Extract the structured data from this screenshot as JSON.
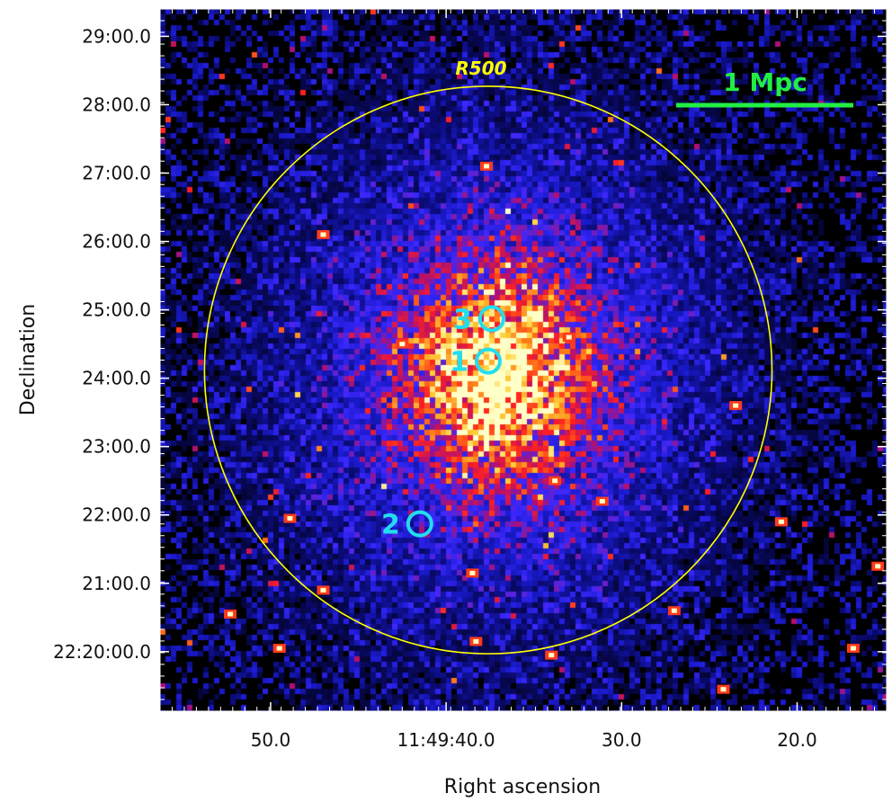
{
  "chart_data": {
    "type": "heatmap",
    "title": "",
    "xlabel": "Right ascension",
    "ylabel": "Declination",
    "colormap": [
      "#000000",
      "#0a0a70",
      "#1a1acc",
      "#3c28ff",
      "#b01070",
      "#ff2020",
      "#ff7a18",
      "#ffd23c",
      "#ffffc8"
    ],
    "x_ticks": [
      {
        "label": "50.0",
        "ra_sec": 50.0
      },
      {
        "label": "11:49:40.0",
        "ra_sec": 40.0
      },
      {
        "label": "30.0",
        "ra_sec": 30.0
      },
      {
        "label": "20.0",
        "ra_sec": 20.0
      }
    ],
    "y_ticks": [
      {
        "label": "29:00.0",
        "dec_min": 29
      },
      {
        "label": "28:00.0",
        "dec_min": 28
      },
      {
        "label": "27:00.0",
        "dec_min": 27
      },
      {
        "label": "26:00.0",
        "dec_min": 26
      },
      {
        "label": "25:00.0",
        "dec_min": 25
      },
      {
        "label": "24:00.0",
        "dec_min": 24
      },
      {
        "label": "23:00.0",
        "dec_min": 23
      },
      {
        "label": "22:00.0",
        "dec_min": 22
      },
      {
        "label": "21:00.0",
        "dec_min": 21
      },
      {
        "label": "22:20:00.0",
        "dec_min": 20
      }
    ],
    "xlim_ra_sec": [
      56.3,
      14.9
    ],
    "ylim_dec_min": [
      19.13,
      29.4
    ],
    "r500": {
      "label": "R500",
      "color": "#ffff00",
      "ra_sec": 37.6,
      "dec_min": 24.12,
      "radius_arcmin": 4.15
    },
    "scale_bar": {
      "label": "1 Mpc",
      "color": "#22ee44"
    },
    "regions": [
      {
        "label": "1",
        "ra_sec": 37.6,
        "dec_min": 24.25
      },
      {
        "label": "2",
        "ra_sec": 41.5,
        "dec_min": 21.87
      },
      {
        "label": "3",
        "ra_sec": 37.4,
        "dec_min": 24.87
      }
    ],
    "region_color": "#22ddee",
    "emission": {
      "peak_ra_sec": 37.2,
      "peak_dec_min": 23.95
    },
    "point_sources": [
      {
        "ra_sec": 37.7,
        "dec_min": 27.1
      },
      {
        "ra_sec": 47.0,
        "dec_min": 26.1
      },
      {
        "ra_sec": 42.5,
        "dec_min": 24.5
      },
      {
        "ra_sec": 23.5,
        "dec_min": 23.6
      },
      {
        "ra_sec": 33.8,
        "dec_min": 22.5
      },
      {
        "ra_sec": 31.1,
        "dec_min": 22.2
      },
      {
        "ra_sec": 48.9,
        "dec_min": 21.95
      },
      {
        "ra_sec": 38.5,
        "dec_min": 21.15
      },
      {
        "ra_sec": 38.3,
        "dec_min": 20.15
      },
      {
        "ra_sec": 34.0,
        "dec_min": 19.95
      },
      {
        "ra_sec": 49.5,
        "dec_min": 20.05
      },
      {
        "ra_sec": 52.3,
        "dec_min": 20.55
      },
      {
        "ra_sec": 24.2,
        "dec_min": 19.45
      },
      {
        "ra_sec": 27.0,
        "dec_min": 20.6
      },
      {
        "ra_sec": 20.9,
        "dec_min": 21.9
      },
      {
        "ra_sec": 15.4,
        "dec_min": 21.25
      },
      {
        "ra_sec": 16.8,
        "dec_min": 20.05
      },
      {
        "ra_sec": 47.0,
        "dec_min": 20.9
      },
      {
        "ra_sec": 33.0,
        "dec_min": 24.6
      }
    ]
  }
}
